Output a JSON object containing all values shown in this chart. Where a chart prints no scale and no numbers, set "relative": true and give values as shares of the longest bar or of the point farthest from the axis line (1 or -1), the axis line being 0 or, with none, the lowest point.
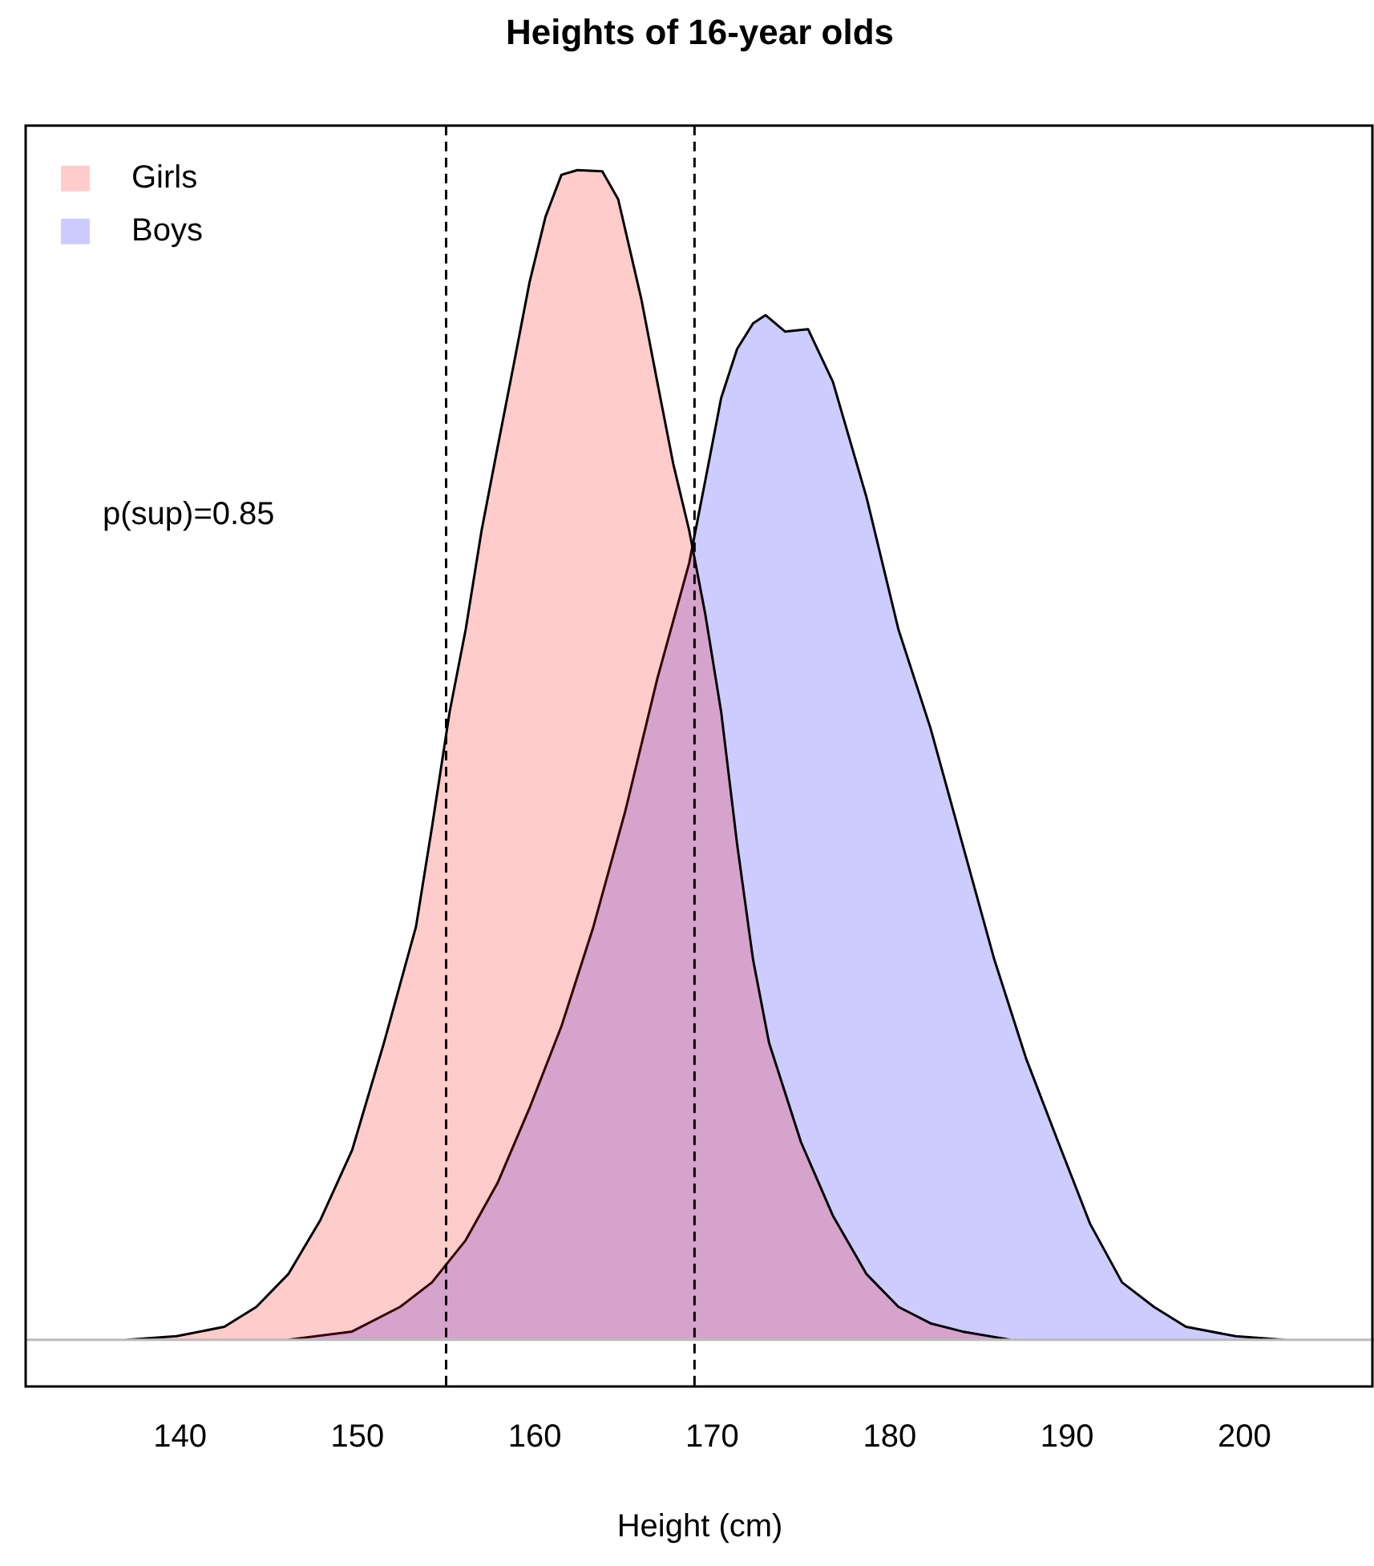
{
  "chart_data": {
    "type": "area",
    "title": "Heights of 16-year olds",
    "xlabel": "Height (cm)",
    "relative": true,
    "xlim": [
      131.3,
      207.3
    ],
    "xticks": [
      140,
      150,
      160,
      170,
      180,
      190,
      200
    ],
    "legend": "top left",
    "grid": false,
    "series": [
      {
        "name": "Girls",
        "color": "#ffcccc",
        "x": [
          137,
          139.8,
          142.5,
          144.3,
          146.1,
          147.9,
          149.7,
          151.5,
          153.3,
          154.2,
          155.2,
          156.1,
          157,
          157.9,
          158.8,
          159.7,
          160.6,
          161.5,
          162.4,
          163.8,
          164.7,
          166,
          166.9,
          167.8,
          168.7,
          169.6,
          170.5,
          171.4,
          172.3,
          173.2,
          175,
          176.8,
          178.7,
          180.5,
          182.3,
          184.1,
          186.8
        ],
        "values": [
          0,
          0.003,
          0.011,
          0.028,
          0.056,
          0.102,
          0.162,
          0.254,
          0.353,
          0.438,
          0.537,
          0.607,
          0.692,
          0.763,
          0.833,
          0.904,
          0.96,
          0.996,
          1,
          0.999,
          0.975,
          0.89,
          0.819,
          0.749,
          0.692,
          0.621,
          0.537,
          0.424,
          0.325,
          0.254,
          0.169,
          0.106,
          0.056,
          0.028,
          0.014,
          0.007,
          0
        ]
      },
      {
        "name": "Boys",
        "color": "#ccccff",
        "x": [
          146.1,
          149.7,
          152.4,
          154.2,
          156.1,
          157.9,
          159.7,
          161.5,
          163.3,
          165.1,
          166.9,
          168.7,
          169.6,
          170.5,
          171.4,
          172.3,
          173,
          174.1,
          175.4,
          176.8,
          178.7,
          180.5,
          182.3,
          184.1,
          185.9,
          187.7,
          189.5,
          191.3,
          193.1,
          194.9,
          196.7,
          199.5,
          202.2
        ],
        "values": [
          0,
          0.007,
          0.028,
          0.049,
          0.085,
          0.134,
          0.198,
          0.268,
          0.353,
          0.452,
          0.565,
          0.664,
          0.734,
          0.805,
          0.847,
          0.869,
          0.876,
          0.862,
          0.864,
          0.819,
          0.72,
          0.607,
          0.523,
          0.424,
          0.325,
          0.24,
          0.169,
          0.099,
          0.049,
          0.028,
          0.011,
          0.003,
          0
        ]
      }
    ],
    "ref_lines": [
      {
        "axis": "x",
        "value": 155,
        "line_style": "dashed"
      },
      {
        "axis": "x",
        "value": 169,
        "line_style": "dashed"
      }
    ],
    "annotations": [
      "p(sup)=0.85"
    ]
  }
}
